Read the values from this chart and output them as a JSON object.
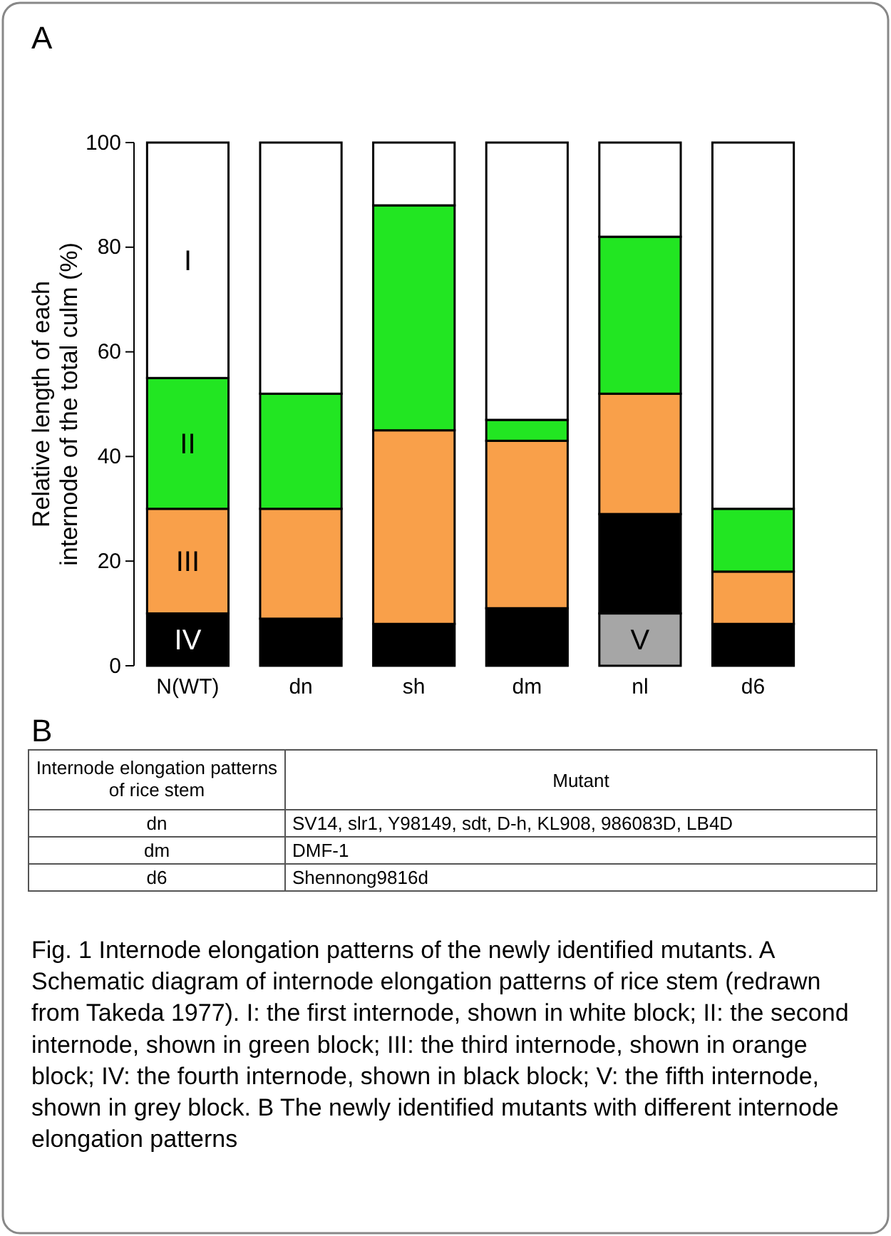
{
  "chart_data": {
    "type": "bar",
    "stacked": true,
    "categories": [
      "N(WT)",
      "dn",
      "sh",
      "dm",
      "nl",
      "d6"
    ],
    "ylabel": "Relative length of each internode of the total culm (%)",
    "ylim": [
      0,
      100
    ],
    "yticks": [
      0,
      20,
      40,
      60,
      80,
      100
    ],
    "grid": false,
    "legend": false,
    "series": [
      {
        "name": "V",
        "color": "#a6a6a6",
        "values": [
          null,
          null,
          null,
          null,
          10,
          null
        ]
      },
      {
        "name": "IV",
        "color": "#000000",
        "values": [
          10,
          9,
          8,
          11,
          19,
          8
        ]
      },
      {
        "name": "III",
        "color": "#f9a04a",
        "values": [
          20,
          21,
          37,
          32,
          23,
          10
        ]
      },
      {
        "name": "II",
        "color": "#22e622",
        "values": [
          25,
          22,
          43,
          4,
          30,
          12
        ]
      },
      {
        "name": "I",
        "color": "#ffffff",
        "values": [
          45,
          48,
          12,
          53,
          18,
          70
        ]
      }
    ],
    "annotations": [
      "A",
      "B",
      "Internode elongation patterns of rice stem",
      "Mutant",
      "dn",
      "SV14, slr1, Y98149, sdt, D-h, KL908, 986083D, LB4D",
      "dm",
      "DMF-1",
      "d6",
      "Shennong9816d",
      "Fig. 1 Internode elongation patterns of the newly identified mutants. A Schematic diagram of internode elongation patterns of rice stem (redrawn from Takeda 1977). I: the first internode, shown in white block; II: the second internode, shown in green block; III: the third internode, shown in orange block; IV: the fourth internode, shown in black block; V: the fifth internode, shown in grey block. B The newly identified mutants with different internode elongation patterns"
    ]
  }
}
